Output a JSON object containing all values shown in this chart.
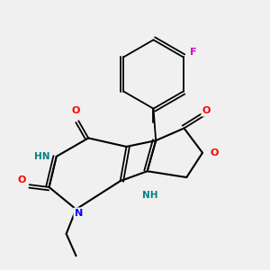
{
  "bg_color": "#f0f0f0",
  "atom_colors": {
    "C": "#000000",
    "N": "#0000ff",
    "O": "#ff0000",
    "F": "#cc00cc",
    "H_label": "#008080"
  },
  "title": "",
  "figsize": [
    3.0,
    3.0
  ],
  "dpi": 100
}
